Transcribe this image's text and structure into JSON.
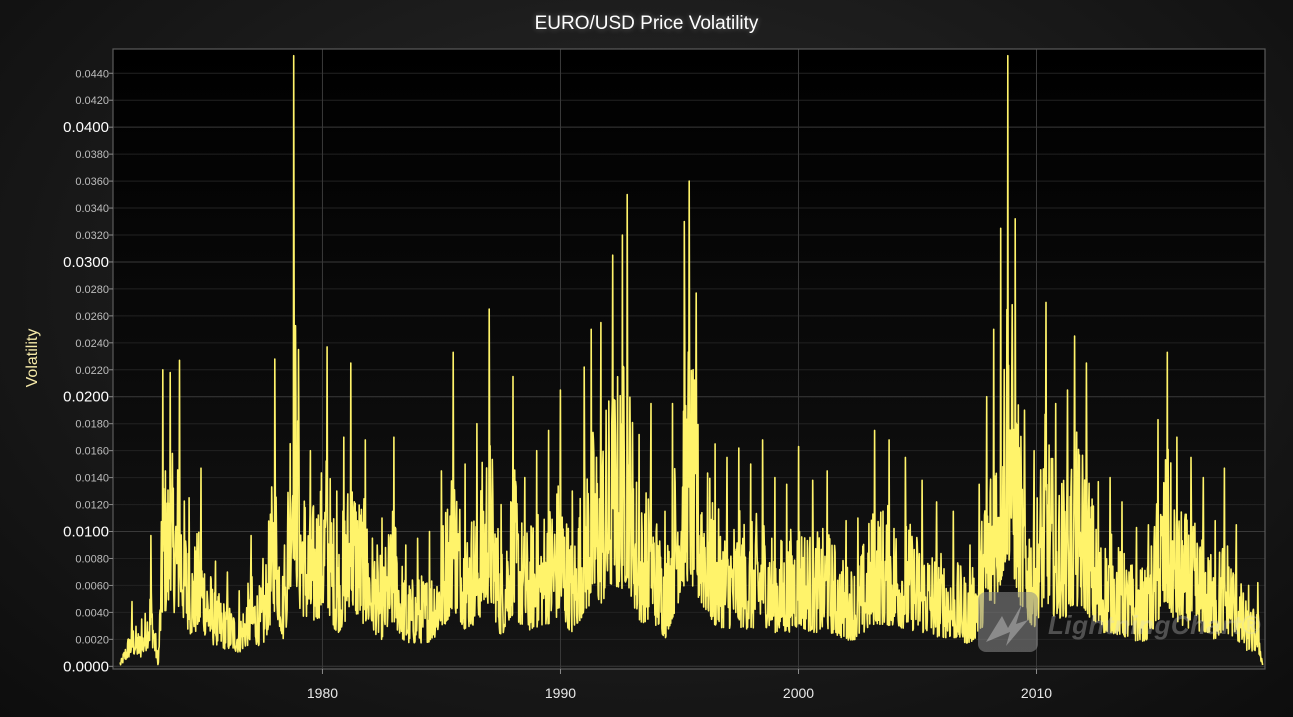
{
  "chart_data": {
    "type": "line",
    "title": "EURO/USD Price Volatility",
    "xlabel": "",
    "ylabel": "Volatility",
    "xlim": [
      1971.2,
      2019.6
    ],
    "ylim": [
      -0.0002,
      0.0458
    ],
    "x_ticks": [
      "1980",
      "1990",
      "2000",
      "2010"
    ],
    "x_tick_values": [
      1980,
      1990,
      2000,
      2010
    ],
    "y_major_ticks": [
      "0.0000",
      "0.0100",
      "0.0200",
      "0.0300",
      "0.0400"
    ],
    "y_minor_ticks": [
      "0.0020",
      "0.0040",
      "0.0060",
      "0.0080",
      "0.0120",
      "0.0140",
      "0.0160",
      "0.0180",
      "0.0220",
      "0.0240",
      "0.0260",
      "0.0280",
      "0.0320",
      "0.0340",
      "0.0360",
      "0.0380",
      "0.0420",
      "0.0440"
    ],
    "grid": true,
    "series": [
      {
        "color": "#fff36a",
        "peaks": [
          [
            1971.5,
            0.0003
          ],
          [
            1972.0,
            0.0048
          ],
          [
            1972.4,
            0.0035
          ],
          [
            1972.8,
            0.0097
          ],
          [
            1973.1,
            0.0003
          ],
          [
            1973.3,
            0.022
          ],
          [
            1973.6,
            0.0218
          ],
          [
            1974.0,
            0.0227
          ],
          [
            1974.4,
            0.0125
          ],
          [
            1974.9,
            0.0147
          ],
          [
            1975.5,
            0.0078
          ],
          [
            1976.0,
            0.007
          ],
          [
            1976.5,
            0.0056
          ],
          [
            1977.0,
            0.0097
          ],
          [
            1977.5,
            0.008
          ],
          [
            1978.0,
            0.0228
          ],
          [
            1978.4,
            0.009
          ],
          [
            1978.8,
            0.0453
          ],
          [
            1979.0,
            0.0235
          ],
          [
            1979.5,
            0.016
          ],
          [
            1980.2,
            0.0237
          ],
          [
            1980.6,
            0.013
          ],
          [
            1980.9,
            0.017
          ],
          [
            1981.2,
            0.0225
          ],
          [
            1981.8,
            0.0168
          ],
          [
            1982.5,
            0.011
          ],
          [
            1983.0,
            0.017
          ],
          [
            1983.5,
            0.009
          ],
          [
            1984.0,
            0.0095
          ],
          [
            1984.5,
            0.01
          ],
          [
            1985.0,
            0.0145
          ],
          [
            1985.5,
            0.0233
          ],
          [
            1986.0,
            0.015
          ],
          [
            1986.5,
            0.018
          ],
          [
            1987.0,
            0.0265
          ],
          [
            1987.5,
            0.012
          ],
          [
            1988.0,
            0.0215
          ],
          [
            1988.5,
            0.014
          ],
          [
            1989.0,
            0.016
          ],
          [
            1989.5,
            0.0175
          ],
          [
            1990.0,
            0.0205
          ],
          [
            1990.5,
            0.013
          ],
          [
            1991.0,
            0.0222
          ],
          [
            1991.3,
            0.025
          ],
          [
            1991.7,
            0.0255
          ],
          [
            1992.2,
            0.0305
          ],
          [
            1992.6,
            0.032
          ],
          [
            1992.8,
            0.035
          ],
          [
            1993.3,
            0.0172
          ],
          [
            1993.8,
            0.0195
          ],
          [
            1994.4,
            0.0115
          ],
          [
            1994.7,
            0.0195
          ],
          [
            1995.2,
            0.033
          ],
          [
            1995.4,
            0.036
          ],
          [
            1995.7,
            0.0277
          ],
          [
            1996.5,
            0.0165
          ],
          [
            1997.0,
            0.0155
          ],
          [
            1997.5,
            0.0162
          ],
          [
            1998.0,
            0.015
          ],
          [
            1998.5,
            0.0168
          ],
          [
            1999.0,
            0.014
          ],
          [
            1999.5,
            0.0135
          ],
          [
            2000.0,
            0.0163
          ],
          [
            2000.6,
            0.0138
          ],
          [
            2001.2,
            0.0145
          ],
          [
            2002.0,
            0.0108
          ],
          [
            2002.5,
            0.011
          ],
          [
            2003.2,
            0.0175
          ],
          [
            2003.8,
            0.0168
          ],
          [
            2004.5,
            0.0155
          ],
          [
            2005.2,
            0.0138
          ],
          [
            2005.8,
            0.0122
          ],
          [
            2006.5,
            0.0115
          ],
          [
            2007.2,
            0.009
          ],
          [
            2007.6,
            0.0135
          ],
          [
            2007.9,
            0.02
          ],
          [
            2008.2,
            0.025
          ],
          [
            2008.5,
            0.0325
          ],
          [
            2008.8,
            0.0453
          ],
          [
            2009.1,
            0.0332
          ],
          [
            2009.5,
            0.019
          ],
          [
            2009.9,
            0.016
          ],
          [
            2010.4,
            0.027
          ],
          [
            2010.8,
            0.0195
          ],
          [
            2011.3,
            0.0205
          ],
          [
            2011.6,
            0.0245
          ],
          [
            2012.1,
            0.0225
          ],
          [
            2012.6,
            0.0137
          ],
          [
            2013.1,
            0.014
          ],
          [
            2013.6,
            0.0122
          ],
          [
            2014.2,
            0.0103
          ],
          [
            2014.7,
            0.0105
          ],
          [
            2015.1,
            0.0183
          ],
          [
            2015.5,
            0.0233
          ],
          [
            2015.9,
            0.017
          ],
          [
            2016.5,
            0.0155
          ],
          [
            2017.0,
            0.014
          ],
          [
            2017.5,
            0.0108
          ],
          [
            2017.9,
            0.0147
          ],
          [
            2018.4,
            0.0105
          ],
          [
            2018.9,
            0.006
          ],
          [
            2019.3,
            0.0062
          ],
          [
            2019.5,
            0.0001
          ]
        ]
      }
    ]
  }
}
